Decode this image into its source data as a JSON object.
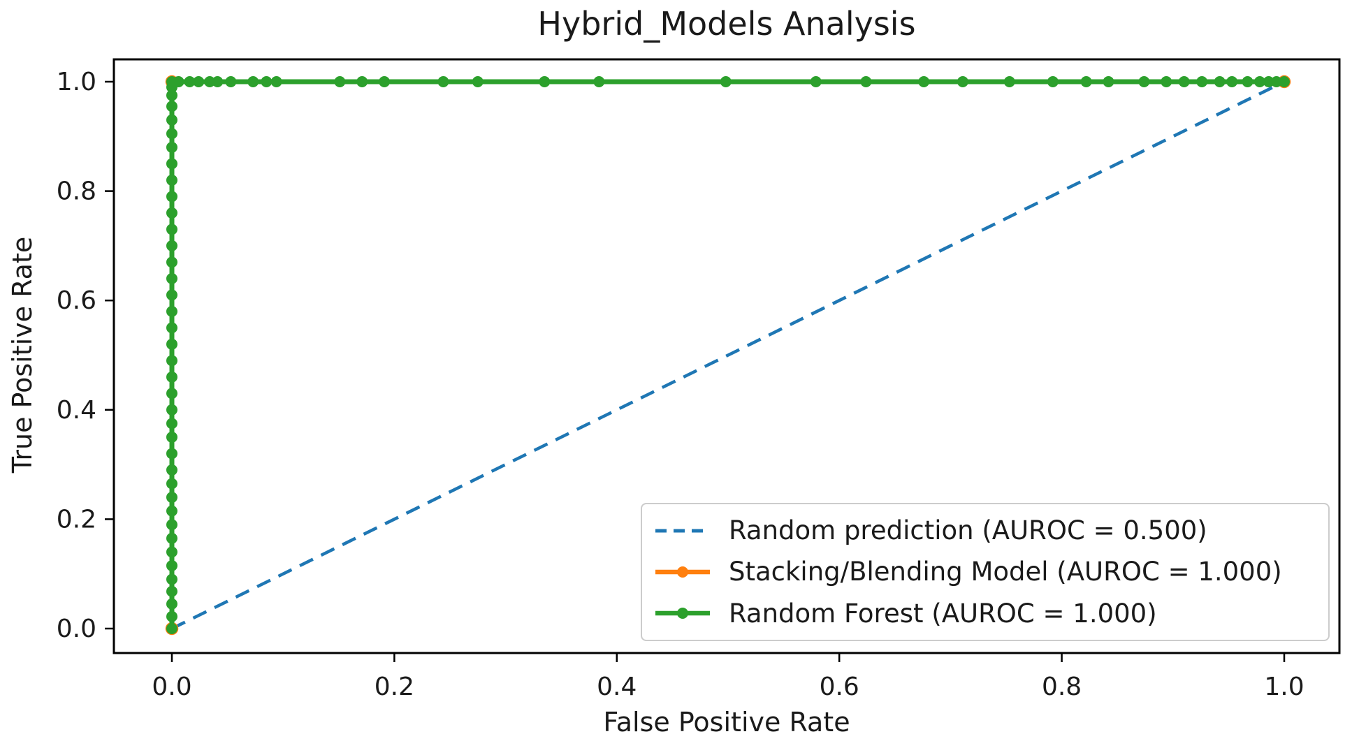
{
  "chart_data": {
    "type": "line",
    "title": "Hybrid_Models Analysis",
    "xlabel": "False Positive Rate",
    "ylabel": "True Positive Rate",
    "xlim": [
      0.0,
      1.0
    ],
    "ylim": [
      0.0,
      1.0
    ],
    "grid": false,
    "legend_position": "lower right",
    "x_tick_labels": [
      "0.0",
      "0.2",
      "0.4",
      "0.6",
      "0.8",
      "1.0"
    ],
    "y_tick_labels": [
      "0.0",
      "0.2",
      "0.4",
      "0.6",
      "0.8",
      "1.0"
    ],
    "series": [
      {
        "name": "random-prediction",
        "legend_label": "Random prediction (AUROC = 0.500)",
        "auroc": 0.5,
        "color": "#1f77b4",
        "style": "dashed",
        "marker": "none",
        "x": [
          0.0,
          1.0
        ],
        "y": [
          0.0,
          1.0
        ]
      },
      {
        "name": "stacking-blending-model",
        "legend_label": "Stacking/Blending Model (AUROC = 1.000)",
        "auroc": 1.0,
        "color": "#ff7f0e",
        "style": "solid",
        "marker": "dot",
        "x": [
          0.0,
          0.0,
          1.0
        ],
        "y": [
          0.0,
          1.0,
          1.0
        ],
        "markers": {
          "x": [
            0.0,
            0.0,
            1.0
          ],
          "y": [
            0.0,
            1.0,
            1.0
          ]
        }
      },
      {
        "name": "random-forest",
        "legend_label": "Random Forest (AUROC = 1.000)",
        "auroc": 1.0,
        "color": "#2ca02c",
        "style": "solid",
        "marker": "dot",
        "x": [
          0.0,
          0.0,
          1.0
        ],
        "y": [
          0.0,
          1.0,
          1.0
        ],
        "markers": {
          "x": [
            0,
            0,
            0,
            0,
            0,
            0,
            0,
            0,
            0,
            0,
            0,
            0,
            0,
            0,
            0,
            0,
            0,
            0,
            0,
            0,
            0,
            0,
            0,
            0,
            0,
            0,
            0,
            0,
            0,
            0,
            0,
            0,
            0,
            0,
            0,
            0,
            0,
            0,
            0,
            0.006,
            0.016,
            0.024,
            0.034,
            0.041,
            0.053,
            0.073,
            0.085,
            0.094,
            0.151,
            0.171,
            0.191,
            0.244,
            0.275,
            0.335,
            0.384,
            0.498,
            0.579,
            0.624,
            0.676,
            0.711,
            0.753,
            0.792,
            0.822,
            0.842,
            0.874,
            0.894,
            0.91,
            0.926,
            0.942,
            0.953,
            0.967,
            0.978,
            0.986,
            0.993,
            1.0
          ],
          "y": [
            0,
            0.022,
            0.045,
            0.068,
            0.09,
            0.115,
            0.14,
            0.165,
            0.19,
            0.215,
            0.24,
            0.265,
            0.29,
            0.32,
            0.35,
            0.375,
            0.4,
            0.43,
            0.46,
            0.49,
            0.52,
            0.55,
            0.58,
            0.61,
            0.64,
            0.67,
            0.7,
            0.73,
            0.76,
            0.79,
            0.82,
            0.85,
            0.88,
            0.905,
            0.93,
            0.955,
            0.975,
            0.99,
            1.0,
            1,
            1,
            1,
            1,
            1,
            1,
            1,
            1,
            1,
            1,
            1,
            1,
            1,
            1,
            1,
            1,
            1,
            1,
            1,
            1,
            1,
            1,
            1,
            1,
            1,
            1,
            1,
            1,
            1,
            1,
            1,
            1,
            1,
            1,
            1,
            1
          ]
        }
      }
    ]
  },
  "colors": {
    "background": "#ffffff",
    "spine": "#000000",
    "text": "#1a1a1a",
    "legend_border": "#cccccc",
    "blue": "#1f77b4",
    "orange": "#ff7f0e",
    "green": "#2ca02c"
  }
}
